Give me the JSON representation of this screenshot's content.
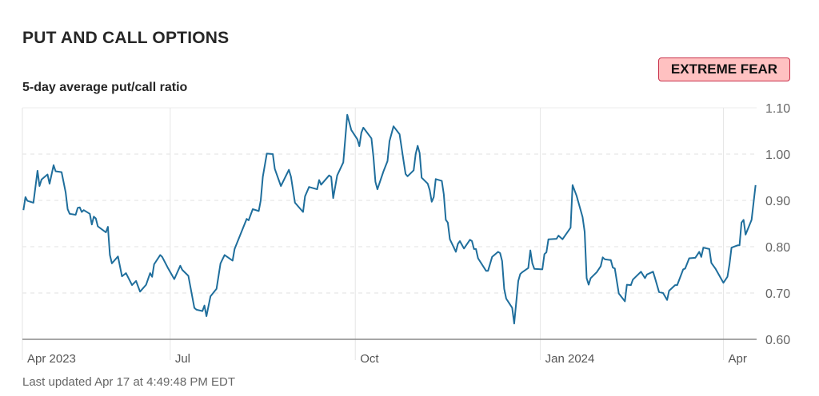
{
  "header": {
    "title": "PUT AND CALL OPTIONS",
    "subtitle": "5-day average put/call ratio",
    "rating_badge": "EXTREME FEAR"
  },
  "footer": {
    "last_updated": "Last updated Apr 17 at 4:49:48 PM EDT"
  },
  "colors": {
    "line": "#1f6e9c",
    "badge_bg": "#ffc1c1",
    "badge_border": "#c8304a"
  },
  "chart_data": {
    "type": "line",
    "title": "5-day average put/call ratio",
    "xlabel": "",
    "ylabel": "",
    "x_unit": "days since 2023-04-01",
    "xlim": [
      17.5,
      382.5
    ],
    "ylim": [
      0.6,
      1.1
    ],
    "yticks": [
      "0.60",
      "0.70",
      "0.80",
      "0.90",
      "1.00",
      "1.10"
    ],
    "ytick_values": [
      0.6,
      0.7,
      0.8,
      0.9,
      1.0,
      1.1
    ],
    "xticks": [
      {
        "label": "Apr 2023",
        "day": 17.5
      },
      {
        "label": "Jul",
        "day": 91
      },
      {
        "label": "Oct",
        "day": 183
      },
      {
        "label": "Jan 2024",
        "day": 275
      },
      {
        "label": "Apr",
        "day": 366
      }
    ],
    "grid": true,
    "series": [
      {
        "name": "5-day average put/call ratio",
        "points": [
          [
            18,
            0.879
          ],
          [
            19,
            0.907
          ],
          [
            20,
            0.899
          ],
          [
            23,
            0.895
          ],
          [
            25,
            0.964
          ],
          [
            26,
            0.931
          ],
          [
            27,
            0.945
          ],
          [
            30,
            0.956
          ],
          [
            31,
            0.936
          ],
          [
            33,
            0.976
          ],
          [
            34,
            0.963
          ],
          [
            37,
            0.961
          ],
          [
            39,
            0.917
          ],
          [
            40,
            0.881
          ],
          [
            41,
            0.871
          ],
          [
            44,
            0.869
          ],
          [
            45,
            0.884
          ],
          [
            46,
            0.885
          ],
          [
            47,
            0.875
          ],
          [
            48,
            0.879
          ],
          [
            51,
            0.871
          ],
          [
            52,
            0.848
          ],
          [
            53,
            0.865
          ],
          [
            54,
            0.861
          ],
          [
            55,
            0.844
          ],
          [
            59,
            0.831
          ],
          [
            60,
            0.843
          ],
          [
            61,
            0.782
          ],
          [
            62,
            0.764
          ],
          [
            65,
            0.779
          ],
          [
            67,
            0.736
          ],
          [
            69,
            0.743
          ],
          [
            72,
            0.717
          ],
          [
            74,
            0.726
          ],
          [
            76,
            0.703
          ],
          [
            79,
            0.718
          ],
          [
            81,
            0.743
          ],
          [
            82,
            0.735
          ],
          [
            83,
            0.762
          ],
          [
            86,
            0.782
          ],
          [
            87,
            0.778
          ],
          [
            90,
            0.753
          ],
          [
            93,
            0.73
          ],
          [
            96,
            0.759
          ],
          [
            97,
            0.75
          ],
          [
            100,
            0.737
          ],
          [
            103,
            0.668
          ],
          [
            104,
            0.664
          ],
          [
            107,
            0.661
          ],
          [
            108,
            0.673
          ],
          [
            109,
            0.65
          ],
          [
            111,
            0.693
          ],
          [
            114,
            0.709
          ],
          [
            116,
            0.764
          ],
          [
            118,
            0.782
          ],
          [
            122,
            0.77
          ],
          [
            123,
            0.795
          ],
          [
            129,
            0.86
          ],
          [
            130,
            0.857
          ],
          [
            132,
            0.881
          ],
          [
            135,
            0.877
          ],
          [
            136,
            0.9
          ],
          [
            137,
            0.951
          ],
          [
            139,
            1.001
          ],
          [
            142,
            1.0
          ],
          [
            143,
            0.968
          ],
          [
            146,
            0.931
          ],
          [
            150,
            0.966
          ],
          [
            151,
            0.951
          ],
          [
            153,
            0.895
          ],
          [
            157,
            0.875
          ],
          [
            158,
            0.909
          ],
          [
            160,
            0.929
          ],
          [
            164,
            0.924
          ],
          [
            165,
            0.944
          ],
          [
            166,
            0.934
          ],
          [
            170,
            0.954
          ],
          [
            171,
            0.951
          ],
          [
            172,
            0.905
          ],
          [
            174,
            0.954
          ],
          [
            177,
            0.982
          ],
          [
            179,
            1.085
          ],
          [
            181,
            1.052
          ],
          [
            184,
            1.032
          ],
          [
            185,
            1.017
          ],
          [
            186,
            1.046
          ],
          [
            187,
            1.057
          ],
          [
            191,
            1.034
          ],
          [
            192,
            0.994
          ],
          [
            193,
            0.94
          ],
          [
            194,
            0.924
          ],
          [
            197,
            0.963
          ],
          [
            199,
            0.985
          ],
          [
            200,
            1.028
          ],
          [
            202,
            1.06
          ],
          [
            205,
            1.043
          ],
          [
            207,
            0.985
          ],
          [
            208,
            0.957
          ],
          [
            209,
            0.952
          ],
          [
            212,
            0.965
          ],
          [
            213,
            1.0
          ],
          [
            214,
            1.018
          ],
          [
            215,
            1.002
          ],
          [
            216,
            0.949
          ],
          [
            219,
            0.936
          ],
          [
            220,
            0.922
          ],
          [
            221,
            0.897
          ],
          [
            222,
            0.907
          ],
          [
            223,
            0.946
          ],
          [
            226,
            0.942
          ],
          [
            227,
            0.913
          ],
          [
            228,
            0.858
          ],
          [
            229,
            0.852
          ],
          [
            230,
            0.816
          ],
          [
            233,
            0.789
          ],
          [
            234,
            0.806
          ],
          [
            235,
            0.812
          ],
          [
            237,
            0.796
          ],
          [
            240,
            0.815
          ],
          [
            241,
            0.812
          ],
          [
            242,
            0.795
          ],
          [
            243,
            0.795
          ],
          [
            244,
            0.775
          ],
          [
            248,
            0.748
          ],
          [
            249,
            0.748
          ],
          [
            251,
            0.778
          ],
          [
            254,
            0.789
          ],
          [
            255,
            0.786
          ],
          [
            256,
            0.769
          ],
          [
            257,
            0.709
          ],
          [
            258,
            0.688
          ],
          [
            261,
            0.668
          ],
          [
            262,
            0.634
          ],
          [
            264,
            0.726
          ],
          [
            265,
            0.741
          ],
          [
            266,
            0.745
          ],
          [
            269,
            0.754
          ],
          [
            270,
            0.792
          ],
          [
            271,
            0.764
          ],
          [
            272,
            0.752
          ],
          [
            276,
            0.751
          ],
          [
            277,
            0.784
          ],
          [
            278,
            0.788
          ],
          [
            279,
            0.816
          ],
          [
            283,
            0.817
          ],
          [
            284,
            0.824
          ],
          [
            286,
            0.816
          ],
          [
            290,
            0.841
          ],
          [
            291,
            0.933
          ],
          [
            293,
            0.91
          ],
          [
            296,
            0.864
          ],
          [
            297,
            0.832
          ],
          [
            298,
            0.732
          ],
          [
            299,
            0.718
          ],
          [
            300,
            0.732
          ],
          [
            303,
            0.745
          ],
          [
            305,
            0.758
          ],
          [
            306,
            0.777
          ],
          [
            307,
            0.773
          ],
          [
            310,
            0.771
          ],
          [
            311,
            0.755
          ],
          [
            312,
            0.753
          ],
          [
            314,
            0.699
          ],
          [
            317,
            0.682
          ],
          [
            318,
            0.718
          ],
          [
            320,
            0.717
          ],
          [
            321,
            0.729
          ],
          [
            325,
            0.746
          ],
          [
            327,
            0.732
          ],
          [
            328,
            0.74
          ],
          [
            331,
            0.746
          ],
          [
            332,
            0.732
          ],
          [
            334,
            0.702
          ],
          [
            336,
            0.7
          ],
          [
            338,
            0.685
          ],
          [
            339,
            0.705
          ],
          [
            342,
            0.717
          ],
          [
            343,
            0.717
          ],
          [
            346,
            0.751
          ],
          [
            347,
            0.753
          ],
          [
            349,
            0.775
          ],
          [
            352,
            0.776
          ],
          [
            354,
            0.789
          ],
          [
            355,
            0.778
          ],
          [
            356,
            0.798
          ],
          [
            359,
            0.795
          ],
          [
            360,
            0.765
          ],
          [
            362,
            0.753
          ],
          [
            366,
            0.722
          ],
          [
            368,
            0.735
          ],
          [
            369,
            0.761
          ],
          [
            370,
            0.798
          ],
          [
            373,
            0.803
          ],
          [
            374,
            0.803
          ],
          [
            375,
            0.852
          ],
          [
            376,
            0.858
          ],
          [
            377,
            0.826
          ],
          [
            380,
            0.858
          ],
          [
            382,
            0.933
          ]
        ]
      }
    ]
  }
}
